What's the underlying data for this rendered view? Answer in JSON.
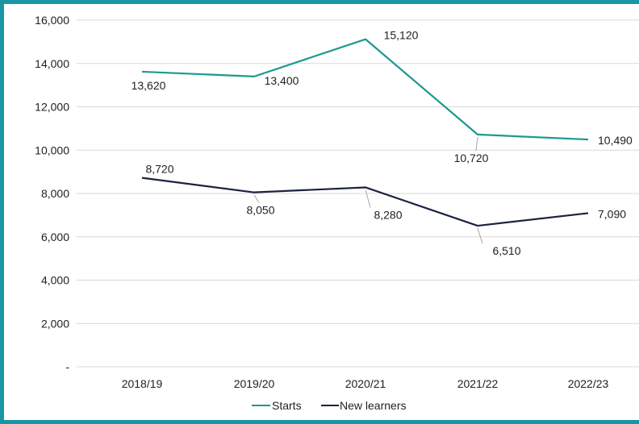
{
  "colors": {
    "frame": "#1a95a6",
    "starts": "#1a9a8e",
    "new_learners": "#1b2340",
    "grid": "#d9d9d9",
    "leader": "#a6a6a6"
  },
  "chart_data": {
    "type": "line",
    "categories": [
      "2018/19",
      "2019/20",
      "2020/21",
      "2021/22",
      "2022/23"
    ],
    "series": [
      {
        "name": "Starts",
        "values": [
          13620,
          13400,
          15120,
          10720,
          10490
        ],
        "labels": [
          "13,620",
          "13,400",
          "15,120",
          "10,720",
          "10,490"
        ]
      },
      {
        "name": "New learners",
        "values": [
          8720,
          8050,
          8280,
          6510,
          7090
        ],
        "labels": [
          "8,720",
          "8,050",
          "8,280",
          "6,510",
          "7,090"
        ]
      }
    ],
    "ylim": [
      0,
      16000
    ],
    "yticks": [
      0,
      2000,
      4000,
      6000,
      8000,
      10000,
      12000,
      14000,
      16000
    ],
    "ytick_labels": [
      "-",
      "2,000",
      "4,000",
      "6,000",
      "8,000",
      "10,000",
      "12,000",
      "14,000",
      "16,000"
    ],
    "grid": true,
    "legend": "bottom"
  }
}
